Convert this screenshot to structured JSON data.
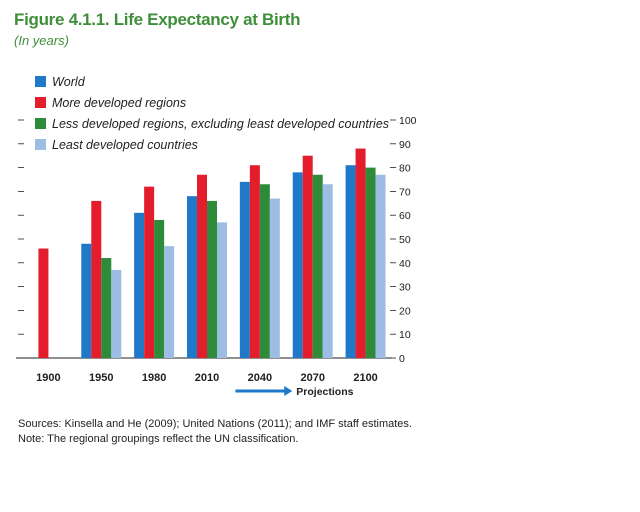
{
  "title": "Figure 4.1.1. Life Expectancy at Birth",
  "subtitle": "(In years)",
  "chart_data": {
    "type": "bar",
    "categories": [
      "1900",
      "1950",
      "1980",
      "2010",
      "2040",
      "2070",
      "2100"
    ],
    "series": [
      {
        "name": "World",
        "color": "#1f78c8",
        "values": [
          null,
          48,
          61,
          68,
          74,
          78,
          81
        ]
      },
      {
        "name": "More developed regions",
        "color": "#e41d2c",
        "values": [
          46,
          66,
          72,
          77,
          81,
          85,
          88
        ]
      },
      {
        "name": "Less developed regions, excluding least developed countries",
        "color": "#2e8b3a",
        "values": [
          null,
          42,
          58,
          66,
          73,
          77,
          80
        ]
      },
      {
        "name": "Least developed countries",
        "color": "#9dbde4",
        "values": [
          null,
          37,
          47,
          57,
          67,
          73,
          77
        ]
      }
    ],
    "ylim": [
      0,
      100
    ],
    "yticks": [
      "0",
      "10",
      "20",
      "30",
      "40",
      "50",
      "60",
      "70",
      "80",
      "90",
      "100"
    ],
    "annotation": "Projections",
    "projection_arrow_color": "#1f78c8",
    "legend_position": "top-left"
  },
  "notes": {
    "sources": "Sources: Kinsella and He (2009); United Nations (2011); and IMF staff estimates.",
    "note": "Note: The regional groupings reflect the UN classification."
  }
}
